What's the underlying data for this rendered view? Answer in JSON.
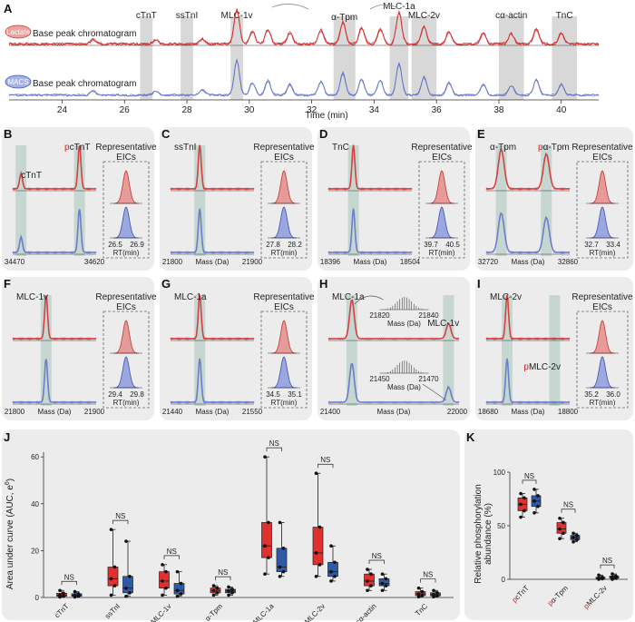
{
  "panel_letters": {
    "A": "A",
    "B": "B",
    "C": "C",
    "D": "D",
    "E": "E",
    "F": "F",
    "G": "G",
    "H": "H",
    "I": "I",
    "J": "J",
    "K": "K"
  },
  "chart_data": [
    {
      "id": "A",
      "type": "line",
      "series": [
        {
          "name": "Lactate",
          "subtitle": "Base peak chromatogram",
          "color": "#d62728"
        },
        {
          "name": "MACS",
          "subtitle": "Base peak chromatogram",
          "color": "#5b6fc9"
        }
      ],
      "xlabel": "Time (min)",
      "xlim": [
        22.3,
        41.2
      ],
      "xticks": [
        "24",
        "26",
        "28",
        "30",
        "32",
        "34",
        "36",
        "38",
        "40"
      ],
      "xtick_values": [
        24,
        26,
        28,
        30,
        32,
        34,
        36,
        38,
        40
      ],
      "highlights": [
        {
          "label": "cTnT",
          "from": 26.5,
          "to": 26.9
        },
        {
          "label": "ssTnI",
          "from": 27.8,
          "to": 28.2
        },
        {
          "label": "MLC-1v",
          "from": 29.4,
          "to": 29.8
        },
        {
          "label": "MLC-1a",
          "from": 34.5,
          "to": 35.1
        },
        {
          "label": "α-Tpm",
          "from": 32.7,
          "to": 33.4
        },
        {
          "label": "MLC-2v",
          "from": 35.2,
          "to": 36.0
        },
        {
          "label": "cα-actin",
          "from": 38.0,
          "to": 38.8
        },
        {
          "label": "TnC",
          "from": 39.7,
          "to": 40.5
        }
      ],
      "peaks": [
        {
          "t": 29.6,
          "h": 0.95
        },
        {
          "t": 30.1,
          "h": 0.35
        },
        {
          "t": 30.6,
          "h": 0.4
        },
        {
          "t": 31.3,
          "h": 0.3
        },
        {
          "t": 32.3,
          "h": 0.38
        },
        {
          "t": 33.0,
          "h": 0.62
        },
        {
          "t": 33.6,
          "h": 0.45
        },
        {
          "t": 34.2,
          "h": 0.42
        },
        {
          "t": 34.8,
          "h": 0.88
        },
        {
          "t": 35.6,
          "h": 0.5
        },
        {
          "t": 36.4,
          "h": 0.35
        },
        {
          "t": 37.5,
          "h": 0.3
        },
        {
          "t": 38.4,
          "h": 0.28
        },
        {
          "t": 39.2,
          "h": 0.42
        },
        {
          "t": 40.0,
          "h": 0.3
        },
        {
          "t": 25.0,
          "h": 0.12
        },
        {
          "t": 27.0,
          "h": 0.1
        },
        {
          "t": 28.5,
          "h": 0.14
        }
      ]
    },
    {
      "id": "B",
      "type": "line",
      "title": "cTnT",
      "title2": "pcTnT",
      "title2_prefix": "p",
      "title2_rest": "cTnT",
      "xlabel": "",
      "xlim": [
        34470,
        34620
      ],
      "xtick_labels": [
        "34470",
        "34620"
      ],
      "eic_title": [
        "Representative",
        "EICs"
      ],
      "eic_xlabel": "RT(min)",
      "eic_ticks": [
        "26.5",
        "26.9"
      ]
    },
    {
      "id": "C",
      "type": "line",
      "title": "ssTnI",
      "xlabel": "Mass (Da)",
      "xtick_labels": [
        "21800",
        "21900"
      ],
      "eic_title": [
        "Representative",
        "EICs"
      ],
      "eic_xlabel": "RT(min)",
      "eic_ticks": [
        "27.8",
        "28.2"
      ]
    },
    {
      "id": "D",
      "type": "line",
      "title": "TnC",
      "xlabel": "Mass (Da)",
      "xtick_labels": [
        "18396",
        "18504"
      ],
      "eic_title": [
        "Representative",
        "EICs"
      ],
      "eic_xlabel": "RT(min)",
      "eic_ticks": [
        "39.7",
        "40.5"
      ]
    },
    {
      "id": "E",
      "type": "line",
      "title": "α-Tpm",
      "title2_prefix": "p",
      "title2_rest": "α-Tpm",
      "xlabel": "Mass (Da)",
      "xtick_labels": [
        "32720",
        "32860"
      ],
      "eic_title": [
        "Representative",
        "EICs"
      ],
      "eic_xlabel": "RT(min)",
      "eic_ticks": [
        "32.7",
        "33.4"
      ]
    },
    {
      "id": "F",
      "type": "line",
      "title": "MLC-1v",
      "xlabel": "Mass (Da)",
      "xtick_labels": [
        "21800",
        "21900"
      ],
      "eic_title": [
        "Representative",
        "EICs"
      ],
      "eic_xlabel": "RT(min)",
      "eic_ticks": [
        "29.4",
        "29.8"
      ]
    },
    {
      "id": "G",
      "type": "line",
      "title": "MLC-1a",
      "xlabel": "Mass (Da)",
      "xtick_labels": [
        "21440",
        "21550"
      ],
      "eic_title": [
        "Representative",
        "EICs"
      ],
      "eic_xlabel": "RT(min)",
      "eic_ticks": [
        "34.5",
        "35.1"
      ]
    },
    {
      "id": "H",
      "type": "line",
      "title": "MLC-1a",
      "title2": "MLC-1v",
      "xlabel": "Mass (Da)",
      "xtick_labels": [
        "21400",
        "22000"
      ],
      "inset_top": {
        "ticks": [
          "21820",
          "21840"
        ],
        "xlabel": "Mass (Da)"
      },
      "inset_bottom": {
        "ticks": [
          "21450",
          "21470"
        ],
        "xlabel": "Mass (Da)"
      }
    },
    {
      "id": "I",
      "type": "line",
      "title": "MLC-2v",
      "title2_prefix": "p",
      "title2_rest": "MLC-2v",
      "xlabel": "Mass (Da)",
      "xtick_labels": [
        "18680",
        "18800"
      ],
      "eic_title": [
        "Representative",
        "EICs"
      ],
      "eic_xlabel": "RT(min)",
      "eic_ticks": [
        "35.2",
        "36.0"
      ]
    },
    {
      "id": "J",
      "type": "bar",
      "ylabel": "Area under curve (AUC, e6)",
      "ylabel_main": "Area under curve (AUC, e",
      "ylabel_exp": "6",
      "ylabel_close": ")",
      "ylim": [
        0,
        62
      ],
      "yticks": [
        0,
        20,
        40,
        60
      ],
      "categories": [
        "cTnT",
        "ssTnI",
        "MLC-1v",
        "α-Tpm",
        "MLC-1a",
        "MLC-2v",
        "cα-actin",
        "TnC"
      ],
      "significance": [
        "NS",
        "NS",
        "NS",
        "NS",
        "NS",
        "NS",
        "NS",
        "NS"
      ],
      "series": [
        {
          "color": "#e0312f",
          "boxes": [
            {
              "min": 0.2,
              "q1": 0.5,
              "med": 1.0,
              "q3": 1.8,
              "max": 3.0
            },
            {
              "min": 1.0,
              "q1": 5.0,
              "med": 8.0,
              "q3": 13.0,
              "max": 29.0
            },
            {
              "min": 1.0,
              "q1": 4.0,
              "med": 7.0,
              "q3": 11.0,
              "max": 14.0
            },
            {
              "min": 1.0,
              "q1": 2.0,
              "med": 3.0,
              "q3": 4.0,
              "max": 5.0
            },
            {
              "min": 10.0,
              "q1": 17.0,
              "med": 22.0,
              "q3": 32.0,
              "max": 60.0
            },
            {
              "min": 9.0,
              "q1": 14.0,
              "med": 19.0,
              "q3": 30.0,
              "max": 53.0
            },
            {
              "min": 3.0,
              "q1": 5.0,
              "med": 7.0,
              "q3": 10.0,
              "max": 12.0
            },
            {
              "min": 0.3,
              "q1": 0.8,
              "med": 1.5,
              "q3": 2.5,
              "max": 4.0
            }
          ]
        },
        {
          "color": "#2f5aa8",
          "boxes": [
            {
              "min": 0.2,
              "q1": 0.5,
              "med": 1.0,
              "q3": 1.6,
              "max": 2.5
            },
            {
              "min": 0.5,
              "q1": 2.0,
              "med": 4.0,
              "q3": 9.0,
              "max": 24.0
            },
            {
              "min": 0.5,
              "q1": 1.5,
              "med": 3.0,
              "q3": 6.0,
              "max": 11.0
            },
            {
              "min": 1.0,
              "q1": 2.0,
              "med": 2.8,
              "q3": 3.5,
              "max": 4.5
            },
            {
              "min": 9.0,
              "q1": 11.0,
              "med": 13.0,
              "q3": 21.0,
              "max": 32.0
            },
            {
              "min": 7.0,
              "q1": 9.0,
              "med": 11.0,
              "q3": 15.0,
              "max": 22.0
            },
            {
              "min": 3.0,
              "q1": 5.0,
              "med": 6.0,
              "q3": 8.0,
              "max": 10.0
            },
            {
              "min": 0.3,
              "q1": 0.7,
              "med": 1.2,
              "q3": 2.0,
              "max": 3.0
            }
          ]
        }
      ]
    },
    {
      "id": "K",
      "type": "bar",
      "ylabel": [
        "Relative phosphorylation",
        "abundance (%)"
      ],
      "ylim": [
        0,
        100
      ],
      "yticks": [
        0,
        50,
        100
      ],
      "categories": [
        {
          "prefix": "p",
          "rest": "cTnT"
        },
        {
          "prefix": "p",
          "rest": "α-Tpm"
        },
        {
          "prefix": "p",
          "rest": "MLC-2v"
        }
      ],
      "significance": [
        "NS",
        "NS",
        "NS"
      ],
      "series": [
        {
          "color": "#e0312f",
          "boxes": [
            {
              "min": 58,
              "q1": 64,
              "med": 70,
              "q3": 76,
              "max": 80
            },
            {
              "min": 38,
              "q1": 43,
              "med": 47,
              "q3": 53,
              "max": 57
            },
            {
              "min": 0,
              "q1": 0.5,
              "med": 1,
              "q3": 2,
              "max": 4
            }
          ]
        },
        {
          "color": "#2f5aa8",
          "boxes": [
            {
              "min": 62,
              "q1": 68,
              "med": 73,
              "q3": 78,
              "max": 84
            },
            {
              "min": 35,
              "q1": 37,
              "med": 39,
              "q3": 41,
              "max": 43
            },
            {
              "min": 0,
              "q1": 1,
              "med": 2,
              "q3": 3,
              "max": 5
            }
          ]
        }
      ]
    }
  ]
}
